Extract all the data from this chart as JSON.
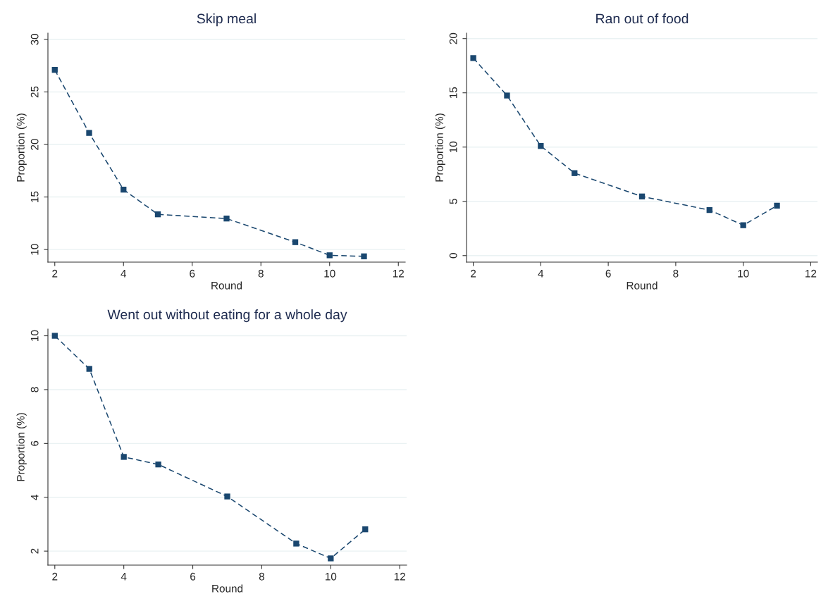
{
  "chart_data": [
    {
      "type": "line",
      "title": "Skip meal",
      "xlabel": "Round",
      "ylabel": "Proportion (%)",
      "x": [
        2,
        3,
        4,
        5,
        7,
        9,
        10,
        11
      ],
      "series": [
        {
          "color": "#1a476f",
          "values": [
            27.1,
            21.1,
            15.7,
            13.35,
            12.95,
            10.7,
            9.45,
            9.35
          ]
        }
      ],
      "xlim": [
        1.8,
        12.2
      ],
      "xticks": [
        2,
        4,
        6,
        8,
        10,
        12
      ],
      "ylim": [
        8.8,
        30.6
      ],
      "yticks": [
        10,
        15,
        20,
        25,
        30
      ],
      "grid": "y",
      "marker": "square",
      "line_style": "dashed"
    },
    {
      "type": "line",
      "title": "Ran out of food",
      "xlabel": "Round",
      "ylabel": "Proportion (%)",
      "x": [
        2,
        3,
        4,
        5,
        7,
        9,
        10,
        11
      ],
      "series": [
        {
          "color": "#1a476f",
          "values": [
            18.2,
            14.75,
            10.1,
            7.6,
            5.45,
            4.2,
            2.8,
            4.6
          ]
        }
      ],
      "xlim": [
        1.8,
        12.2
      ],
      "xticks": [
        2,
        4,
        6,
        8,
        10,
        12
      ],
      "ylim": [
        -0.6,
        20.5
      ],
      "yticks": [
        0,
        5,
        10,
        15,
        20
      ],
      "grid": "y",
      "marker": "square",
      "line_style": "dashed"
    },
    {
      "type": "line",
      "title": "Went out without eating for a whole day",
      "xlabel": "Round",
      "ylabel": "Proportion (%)",
      "x": [
        2,
        3,
        4,
        5,
        7,
        9,
        10,
        11
      ],
      "series": [
        {
          "color": "#1a476f",
          "values": [
            10.0,
            8.77,
            5.5,
            5.22,
            4.03,
            2.28,
            1.73,
            2.81
          ]
        }
      ],
      "xlim": [
        1.8,
        12.2
      ],
      "xticks": [
        2,
        4,
        6,
        8,
        10,
        12
      ],
      "ylim": [
        1.48,
        10.25
      ],
      "yticks": [
        2,
        4,
        6,
        8,
        10
      ],
      "grid": "y",
      "marker": "square",
      "line_style": "dashed"
    }
  ]
}
